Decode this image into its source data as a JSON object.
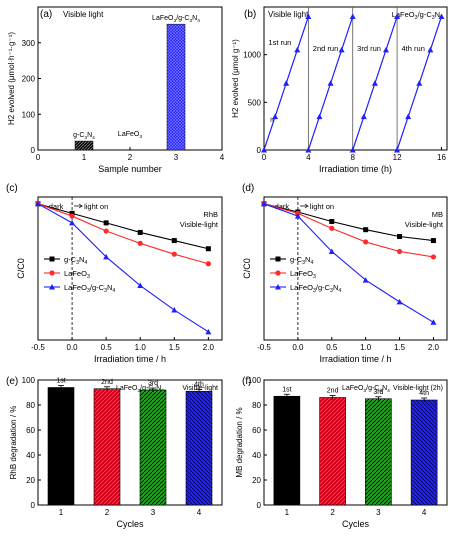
{
  "chart_data": [
    {
      "panel": "(a)",
      "type": "bar",
      "annotation": "Visible light",
      "xlabel": "Sample number",
      "ylabel": "H2 evolved (μmol·h⁻¹·g⁻¹)",
      "ylim": [
        0,
        400
      ],
      "xlim": [
        0,
        4
      ],
      "xticks": [
        0,
        1,
        2,
        3,
        4
      ],
      "yticks": [
        0,
        100,
        200,
        300
      ],
      "grid": false,
      "categories": [
        "g-C3N4",
        "LaFeO3",
        "LaFeO3/g-C3N4"
      ],
      "x": [
        1,
        2,
        3
      ],
      "values": [
        25,
        0,
        352
      ],
      "labels": [
        {
          "base": "g-C",
          "sub1": "3",
          "mid": "N",
          "sub2": "4"
        },
        {
          "base": "LaFeO",
          "sub1": "3",
          "mid": "",
          "sub2": ""
        },
        {
          "base": "LaFeO",
          "sub1": "3",
          "mid": "/g-C",
          "sub2": "3",
          "end": "N",
          "sub3": "4"
        }
      ],
      "colors": [
        "#333333",
        "#333333",
        "#1f1fff"
      ]
    },
    {
      "panel": "(b)",
      "type": "line",
      "annotation": "Visible light",
      "legend": "LaFeO3/g-C3N4",
      "xlabel": "Irradiation time (h)",
      "ylabel": "H2 evolved (μmol g⁻¹)",
      "xlim": [
        0,
        16.5
      ],
      "ylim": [
        0,
        1500
      ],
      "xticks": [
        0,
        4,
        8,
        12,
        16
      ],
      "yticks": [
        0,
        500,
        1000
      ],
      "grid": false,
      "run_labels": [
        "1st run",
        "2nd run",
        "3rd run",
        "4th run"
      ],
      "marker_note": "h",
      "color": "#1f1fff",
      "series": [
        {
          "x": [
            0,
            1,
            2,
            3,
            4
          ],
          "y": [
            0,
            350,
            700,
            1050,
            1400
          ]
        },
        {
          "x": [
            4,
            5,
            6,
            7,
            8
          ],
          "y": [
            0,
            350,
            700,
            1050,
            1400
          ]
        },
        {
          "x": [
            8,
            9,
            10,
            11,
            12
          ],
          "y": [
            0,
            350,
            700,
            1050,
            1400
          ]
        },
        {
          "x": [
            12,
            13,
            14,
            15,
            16
          ],
          "y": [
            0,
            350,
            700,
            1050,
            1400
          ]
        }
      ]
    },
    {
      "panel": "(c)",
      "type": "line",
      "annotation": "RhB",
      "annotation2": "Visible-light",
      "dark_label": "dark",
      "light_label": "light on",
      "xlabel": "Irradiation time / h",
      "ylabel": "C/C0",
      "xlim": [
        -0.5,
        2.2
      ],
      "ylim": [
        0,
        1.05
      ],
      "xticks": [
        -0.5,
        0.0,
        0.5,
        1.0,
        1.5,
        2.0
      ],
      "xtick_labels": [
        "-0.5",
        "0.0",
        "0.5",
        "1.0",
        "1.5",
        "2.0"
      ],
      "grid": false,
      "x": [
        -0.5,
        0,
        0.5,
        1.0,
        1.5,
        2.0
      ],
      "series": [
        {
          "name": "g-C3N4",
          "color": "#000000",
          "marker": "square",
          "y": [
            1.0,
            0.93,
            0.86,
            0.79,
            0.73,
            0.67
          ]
        },
        {
          "name": "LaFeO3",
          "color": "#ff2a2a",
          "marker": "circle",
          "y": [
            1.0,
            0.91,
            0.8,
            0.71,
            0.63,
            0.56
          ]
        },
        {
          "name": "LaFeO3/g-C3N4",
          "color": "#1f1fff",
          "marker": "triangle",
          "y": [
            1.0,
            0.86,
            0.61,
            0.4,
            0.22,
            0.06
          ]
        }
      ],
      "legend_items": [
        {
          "base": "g-C",
          "sub1": "3",
          "mid": "N",
          "sub2": "4"
        },
        {
          "base": "LaFeO",
          "sub1": "3"
        },
        {
          "base": "LaFeO",
          "sub1": "3",
          "mid": "/g-C",
          "sub2": "3",
          "end": "N",
          "sub3": "4"
        }
      ]
    },
    {
      "panel": "(d)",
      "type": "line",
      "annotation": "MB",
      "annotation2": "Visible-light",
      "dark_label": "dark",
      "light_label": "light on",
      "xlabel": "Irradiation time / h",
      "ylabel": "C/C0",
      "xlim": [
        -0.5,
        2.2
      ],
      "ylim": [
        0,
        1.05
      ],
      "xticks": [
        -0.5,
        0.0,
        0.5,
        1.0,
        1.5,
        2.0
      ],
      "xtick_labels": [
        "-0.5",
        "0.0",
        "0.5",
        "1.0",
        "1.5",
        "2.0"
      ],
      "grid": false,
      "x": [
        -0.5,
        0,
        0.5,
        1.0,
        1.5,
        2.0
      ],
      "series": [
        {
          "name": "g-C3N4",
          "color": "#000000",
          "marker": "square",
          "y": [
            1.0,
            0.94,
            0.87,
            0.81,
            0.76,
            0.73
          ]
        },
        {
          "name": "LaFeO3",
          "color": "#ff2a2a",
          "marker": "circle",
          "y": [
            1.0,
            0.93,
            0.82,
            0.72,
            0.65,
            0.61
          ]
        },
        {
          "name": "LaFeO3/g-C3N4",
          "color": "#1f1fff",
          "marker": "triangle",
          "y": [
            1.0,
            0.91,
            0.65,
            0.44,
            0.28,
            0.13
          ]
        }
      ],
      "legend_items": [
        {
          "base": "g-C",
          "sub1": "3",
          "mid": "N",
          "sub2": "4"
        },
        {
          "base": "LaFeO",
          "sub1": "3"
        },
        {
          "base": "LaFeO",
          "sub1": "3",
          "mid": "/g-C",
          "sub2": "3",
          "end": "N",
          "sub3": "4"
        }
      ]
    },
    {
      "panel": "(e)",
      "type": "bar",
      "annotation": "LaFeO3/g-C3N4  Visible-light",
      "xlabel": "Cycles",
      "ylabel": "RhB degradation / %",
      "ylim": [
        0,
        100
      ],
      "yticks": [
        0,
        20,
        40,
        60,
        80,
        100
      ],
      "grid": false,
      "categories": [
        "1",
        "2",
        "3",
        "4"
      ],
      "cycle_labels": [
        "1st",
        "2nd",
        "3rd",
        "4th"
      ],
      "values": [
        94,
        93,
        92,
        91
      ],
      "colors": [
        "#000000",
        "#d6001c",
        "#1fa31f",
        "#1f1fff"
      ]
    },
    {
      "panel": "(f)",
      "type": "bar",
      "annotation": "LaFeO3/g-C3N4  Visible-light (2h)",
      "xlabel": "Cycles",
      "ylabel": "MB degradation / %",
      "ylim": [
        0,
        100
      ],
      "yticks": [
        0,
        20,
        40,
        60,
        80,
        100
      ],
      "grid": false,
      "categories": [
        "1",
        "2",
        "3",
        "4"
      ],
      "cycle_labels": [
        "1st",
        "2nd",
        "3rd",
        "4th"
      ],
      "values": [
        87,
        86,
        85,
        84
      ],
      "colors": [
        "#000000",
        "#d6001c",
        "#1fa31f",
        "#1f1fff"
      ]
    }
  ]
}
